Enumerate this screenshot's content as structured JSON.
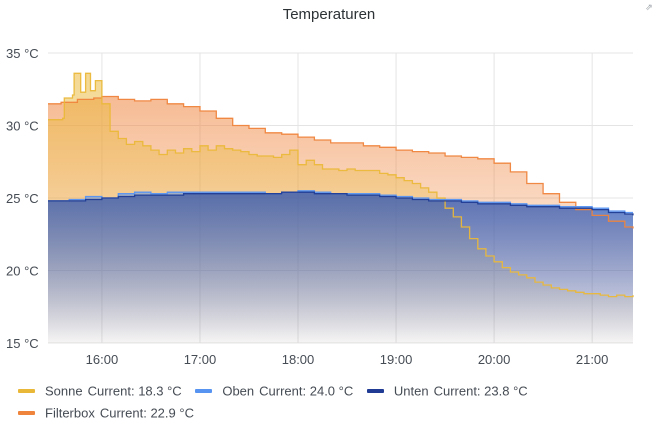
{
  "panel": {
    "title": "Temperaturen"
  },
  "chart_data": {
    "type": "area",
    "title": "Temperaturen",
    "x_unit": "time (HH:MM)",
    "y_unit": "°C",
    "xlim": [
      "15:27",
      "21:25"
    ],
    "ylim": [
      15,
      35
    ],
    "x_ticks": [
      "16:00",
      "17:00",
      "18:00",
      "19:00",
      "20:00",
      "21:00"
    ],
    "y_ticks": [
      "35 °C",
      "30 °C",
      "25 °C",
      "20 °C",
      "15 °C"
    ],
    "y_tick_values": [
      35,
      30,
      25,
      20,
      15
    ],
    "grid": true,
    "legend_position": "bottom-left",
    "series": [
      {
        "name": "Sonne",
        "color": "#eab839",
        "current_label": "Current:",
        "current_value": "18.3 °C",
        "points": [
          [
            "15:27",
            30.4
          ],
          [
            "15:36",
            30.5
          ],
          [
            "15:37",
            31.9
          ],
          [
            "15:42",
            32.1
          ],
          [
            "15:43",
            33.6
          ],
          [
            "15:46",
            33.6
          ],
          [
            "15:47",
            32.3
          ],
          [
            "15:49",
            32.3
          ],
          [
            "15:50",
            33.6
          ],
          [
            "15:52",
            33.6
          ],
          [
            "15:53",
            32.4
          ],
          [
            "15:55",
            32.4
          ],
          [
            "15:56",
            33.1
          ],
          [
            "15:59",
            33.1
          ],
          [
            "16:00",
            31.5
          ],
          [
            "16:05",
            29.6
          ],
          [
            "16:10",
            29.1
          ],
          [
            "16:15",
            28.7
          ],
          [
            "16:20",
            28.9
          ],
          [
            "16:25",
            28.6
          ],
          [
            "16:30",
            28.3
          ],
          [
            "16:35",
            28.0
          ],
          [
            "16:40",
            28.3
          ],
          [
            "16:45",
            28.1
          ],
          [
            "16:50",
            28.4
          ],
          [
            "16:55",
            28.2
          ],
          [
            "17:00",
            28.6
          ],
          [
            "17:05",
            28.3
          ],
          [
            "17:10",
            28.6
          ],
          [
            "17:15",
            28.4
          ],
          [
            "17:20",
            28.3
          ],
          [
            "17:25",
            28.2
          ],
          [
            "17:30",
            28.0
          ],
          [
            "17:35",
            27.9
          ],
          [
            "17:40",
            27.9
          ],
          [
            "17:45",
            27.8
          ],
          [
            "17:50",
            28.0
          ],
          [
            "17:55",
            28.3
          ],
          [
            "18:00",
            27.3
          ],
          [
            "18:05",
            27.6
          ],
          [
            "18:10",
            27.3
          ],
          [
            "18:15",
            27.0
          ],
          [
            "18:20",
            27.0
          ],
          [
            "18:25",
            26.9
          ],
          [
            "18:30",
            27.0
          ],
          [
            "18:35",
            26.9
          ],
          [
            "18:40",
            26.9
          ],
          [
            "18:45",
            26.9
          ],
          [
            "18:50",
            26.7
          ],
          [
            "18:55",
            26.6
          ],
          [
            "19:00",
            26.4
          ],
          [
            "19:05",
            26.2
          ],
          [
            "19:10",
            26.0
          ],
          [
            "19:15",
            25.7
          ],
          [
            "19:20",
            25.4
          ],
          [
            "19:25",
            25.0
          ],
          [
            "19:30",
            24.3
          ],
          [
            "19:35",
            23.7
          ],
          [
            "19:40",
            23.0
          ],
          [
            "19:45",
            22.2
          ],
          [
            "19:50",
            21.5
          ],
          [
            "19:55",
            21.0
          ],
          [
            "20:00",
            20.6
          ],
          [
            "20:05",
            20.2
          ],
          [
            "20:10",
            19.9
          ],
          [
            "20:15",
            19.7
          ],
          [
            "20:20",
            19.5
          ],
          [
            "20:25",
            19.2
          ],
          [
            "20:30",
            19.0
          ],
          [
            "20:35",
            18.8
          ],
          [
            "20:40",
            18.7
          ],
          [
            "20:45",
            18.6
          ],
          [
            "20:50",
            18.5
          ],
          [
            "20:55",
            18.4
          ],
          [
            "21:00",
            18.4
          ],
          [
            "21:05",
            18.3
          ],
          [
            "21:10",
            18.2
          ],
          [
            "21:15",
            18.3
          ],
          [
            "21:20",
            18.2
          ],
          [
            "21:25",
            18.3
          ]
        ]
      },
      {
        "name": "Oben",
        "color": "#5794f2",
        "current_label": "Current:",
        "current_value": "24.0 °C",
        "points": [
          [
            "15:27",
            24.8
          ],
          [
            "15:40",
            24.9
          ],
          [
            "15:50",
            25.1
          ],
          [
            "16:00",
            25.0
          ],
          [
            "16:10",
            25.3
          ],
          [
            "16:20",
            25.4
          ],
          [
            "16:30",
            25.3
          ],
          [
            "16:40",
            25.4
          ],
          [
            "16:50",
            25.4
          ],
          [
            "17:00",
            25.4
          ],
          [
            "17:10",
            25.4
          ],
          [
            "17:20",
            25.4
          ],
          [
            "17:30",
            25.4
          ],
          [
            "17:40",
            25.3
          ],
          [
            "17:50",
            25.4
          ],
          [
            "18:00",
            25.5
          ],
          [
            "18:10",
            25.4
          ],
          [
            "18:20",
            25.3
          ],
          [
            "18:30",
            25.3
          ],
          [
            "18:40",
            25.3
          ],
          [
            "18:50",
            25.2
          ],
          [
            "19:00",
            25.1
          ],
          [
            "19:10",
            25.0
          ],
          [
            "19:20",
            24.9
          ],
          [
            "19:30",
            24.9
          ],
          [
            "19:40",
            24.8
          ],
          [
            "19:50",
            24.7
          ],
          [
            "20:00",
            24.7
          ],
          [
            "20:10",
            24.6
          ],
          [
            "20:20",
            24.5
          ],
          [
            "20:30",
            24.5
          ],
          [
            "20:40",
            24.4
          ],
          [
            "20:50",
            24.4
          ],
          [
            "21:00",
            24.3
          ],
          [
            "21:10",
            24.1
          ],
          [
            "21:20",
            24.0
          ],
          [
            "21:25",
            24.0
          ]
        ]
      },
      {
        "name": "Unten",
        "color": "#1f3b94",
        "current_label": "Current:",
        "current_value": "23.8 °C",
        "points": [
          [
            "15:27",
            24.8
          ],
          [
            "15:40",
            24.8
          ],
          [
            "15:50",
            24.9
          ],
          [
            "16:00",
            25.0
          ],
          [
            "16:10",
            25.1
          ],
          [
            "16:20",
            25.2
          ],
          [
            "16:30",
            25.2
          ],
          [
            "16:40",
            25.2
          ],
          [
            "16:50",
            25.3
          ],
          [
            "17:00",
            25.3
          ],
          [
            "17:10",
            25.3
          ],
          [
            "17:20",
            25.3
          ],
          [
            "17:30",
            25.3
          ],
          [
            "17:40",
            25.3
          ],
          [
            "17:50",
            25.4
          ],
          [
            "18:00",
            25.4
          ],
          [
            "18:10",
            25.3
          ],
          [
            "18:20",
            25.3
          ],
          [
            "18:30",
            25.2
          ],
          [
            "18:40",
            25.2
          ],
          [
            "18:50",
            25.1
          ],
          [
            "19:00",
            25.0
          ],
          [
            "19:10",
            24.9
          ],
          [
            "19:20",
            24.8
          ],
          [
            "19:30",
            24.8
          ],
          [
            "19:40",
            24.7
          ],
          [
            "19:50",
            24.6
          ],
          [
            "20:00",
            24.6
          ],
          [
            "20:10",
            24.5
          ],
          [
            "20:20",
            24.4
          ],
          [
            "20:30",
            24.4
          ],
          [
            "20:40",
            24.3
          ],
          [
            "20:50",
            24.3
          ],
          [
            "21:00",
            24.2
          ],
          [
            "21:10",
            24.0
          ],
          [
            "21:20",
            23.9
          ],
          [
            "21:25",
            23.8
          ]
        ]
      },
      {
        "name": "Filterbox",
        "color": "#ef843c",
        "current_label": "Current:",
        "current_value": "22.9 °C",
        "points": [
          [
            "15:27",
            31.5
          ],
          [
            "15:35",
            31.6
          ],
          [
            "15:45",
            31.8
          ],
          [
            "15:55",
            31.9
          ],
          [
            "16:00",
            32.0
          ],
          [
            "16:10",
            31.8
          ],
          [
            "16:20",
            31.7
          ],
          [
            "16:30",
            31.8
          ],
          [
            "16:40",
            31.5
          ],
          [
            "16:50",
            31.3
          ],
          [
            "17:00",
            31.0
          ],
          [
            "17:10",
            30.5
          ],
          [
            "17:20",
            30.0
          ],
          [
            "17:30",
            29.8
          ],
          [
            "17:40",
            29.5
          ],
          [
            "17:50",
            29.4
          ],
          [
            "18:00",
            29.2
          ],
          [
            "18:10",
            29.0
          ],
          [
            "18:20",
            28.8
          ],
          [
            "18:30",
            28.8
          ],
          [
            "18:40",
            28.6
          ],
          [
            "18:50",
            28.5
          ],
          [
            "19:00",
            28.3
          ],
          [
            "19:10",
            28.2
          ],
          [
            "19:20",
            28.1
          ],
          [
            "19:30",
            27.9
          ],
          [
            "19:40",
            27.8
          ],
          [
            "19:50",
            27.7
          ],
          [
            "20:00",
            27.4
          ],
          [
            "20:10",
            26.8
          ],
          [
            "20:20",
            26.0
          ],
          [
            "20:30",
            25.3
          ],
          [
            "20:40",
            24.7
          ],
          [
            "20:50",
            24.2
          ],
          [
            "21:00",
            23.8
          ],
          [
            "21:10",
            23.4
          ],
          [
            "21:20",
            23.0
          ],
          [
            "21:25",
            22.9
          ]
        ]
      }
    ]
  },
  "icons": {
    "corner": "expand-icon"
  }
}
